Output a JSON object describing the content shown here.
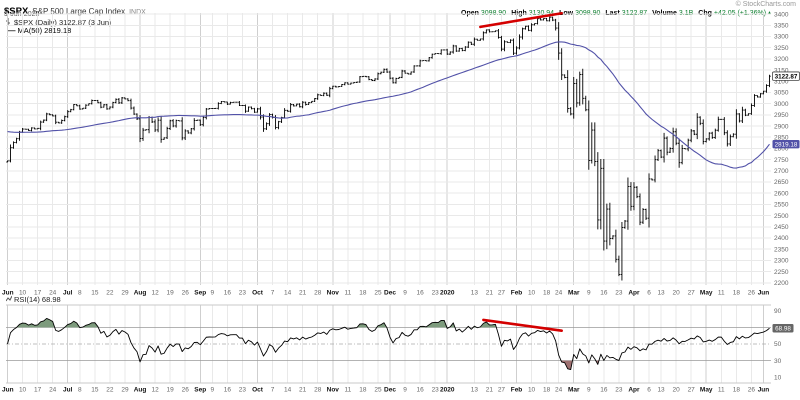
{
  "meta": {
    "copyright": "© StockCharts.com"
  },
  "header": {
    "symbol": "$SPX",
    "name": "S&P 500 Large Cap Index",
    "exchange": "INDX",
    "date": "3-Jun-2020",
    "quote": {
      "items": [
        {
          "label": "Open",
          "value": "3098.90"
        },
        {
          "label": "High",
          "value": "3130.94"
        },
        {
          "label": "Low",
          "value": "3098.90"
        },
        {
          "label": "Last",
          "value": "3122.87"
        },
        {
          "label": "Volume",
          "value": "3.1B"
        },
        {
          "label": "Chg",
          "value": "+42.05 (+1.36%)"
        }
      ],
      "arrow": "▲"
    }
  },
  "legend": {
    "price": "$SPX (Daily) 3122.87 (3 Jun)",
    "ma": "MA(50) 2819.18"
  },
  "rsi_legend": "RSI(14) 68.98",
  "colors": {
    "bar": "#000000",
    "ma_line": "#5252a8",
    "trendline": "#d40000",
    "up_green": "#0a7d2c",
    "rsi_line": "#000000",
    "rsi_overbought_fill": "#7d9b7d",
    "rsi_oversold_fill": "#9e7070",
    "grid_light": "#e9e9e9",
    "grid_month": "#cfcfcf",
    "axis_text": "#666666"
  },
  "chart_data": [
    {
      "type": "bar",
      "title": "$SPX Daily OHLC with 50-day moving average",
      "ylabel": "Price",
      "ylim": [
        2200,
        3400
      ],
      "y_axis": {
        "min": 2200,
        "max": 3400,
        "step": 50
      },
      "last_close": 3122.87,
      "last_close_label": "3122.87",
      "ma_window": 50,
      "ma_last": 2819.18,
      "ma_last_label": "2819.18",
      "ma_left_edge_value": 2878,
      "trendline": {
        "start_index": 157,
        "start_value": 3343,
        "end_index": 184,
        "end_value": 3404
      },
      "x_ticks": [
        {
          "label": "Jun",
          "index": 0,
          "bold": true
        },
        {
          "label": "10",
          "index": 5
        },
        {
          "label": "17",
          "index": 10
        },
        {
          "label": "24",
          "index": 15
        },
        {
          "label": "Jul",
          "index": 20,
          "bold": true
        },
        {
          "label": "8",
          "index": 24
        },
        {
          "label": "15",
          "index": 29
        },
        {
          "label": "22",
          "index": 34
        },
        {
          "label": "29",
          "index": 39
        },
        {
          "label": "Aug",
          "index": 44,
          "bold": true
        },
        {
          "label": "12",
          "index": 49
        },
        {
          "label": "19",
          "index": 54
        },
        {
          "label": "26",
          "index": 59
        },
        {
          "label": "Sep",
          "index": 64,
          "bold": true
        },
        {
          "label": "9",
          "index": 68
        },
        {
          "label": "16",
          "index": 73
        },
        {
          "label": "23",
          "index": 78
        },
        {
          "label": "Oct",
          "index": 83,
          "bold": true
        },
        {
          "label": "7",
          "index": 88
        },
        {
          "label": "14",
          "index": 93
        },
        {
          "label": "21",
          "index": 98
        },
        {
          "label": "28",
          "index": 103
        },
        {
          "label": "Nov",
          "index": 108,
          "bold": true
        },
        {
          "label": "11",
          "index": 113
        },
        {
          "label": "18",
          "index": 118
        },
        {
          "label": "25",
          "index": 123
        },
        {
          "label": "Dec",
          "index": 127,
          "bold": true
        },
        {
          "label": "9",
          "index": 132
        },
        {
          "label": "16",
          "index": 137
        },
        {
          "label": "23",
          "index": 142
        },
        {
          "label": "2020",
          "index": 146,
          "bold": true
        },
        {
          "label": "13",
          "index": 155
        },
        {
          "label": "21",
          "index": 160
        },
        {
          "label": "27",
          "index": 164
        },
        {
          "label": "Feb",
          "index": 169,
          "bold": true
        },
        {
          "label": "10",
          "index": 174
        },
        {
          "label": "18",
          "index": 179
        },
        {
          "label": "24",
          "index": 183
        },
        {
          "label": "Mar",
          "index": 188,
          "bold": true
        },
        {
          "label": "9",
          "index": 193
        },
        {
          "label": "16",
          "index": 198
        },
        {
          "label": "23",
          "index": 203
        },
        {
          "label": "Apr",
          "index": 208,
          "bold": true
        },
        {
          "label": "6",
          "index": 213
        },
        {
          "label": "13",
          "index": 217
        },
        {
          "label": "20",
          "index": 222
        },
        {
          "label": "27",
          "index": 227
        },
        {
          "label": "May",
          "index": 232,
          "bold": true
        },
        {
          "label": "11",
          "index": 237
        },
        {
          "label": "18",
          "index": 242
        },
        {
          "label": "26",
          "index": 247
        },
        {
          "label": "Jun",
          "index": 251,
          "bold": true
        }
      ],
      "closes": [
        2744.45,
        2803.27,
        2826.15,
        2843.49,
        2873.34,
        2886.73,
        2885.72,
        2879.84,
        2891.64,
        2886.98,
        2889.67,
        2917.75,
        2926.46,
        2954.18,
        2950.46,
        2945.35,
        2917.38,
        2913.78,
        2924.92,
        2941.76,
        2964.33,
        2973.01,
        2995.82,
        2990.41,
        2975.95,
        2979.63,
        2993.07,
        2999.91,
        3013.77,
        3014.3,
        3004.04,
        2984.42,
        2995.11,
        2976.61,
        2985.03,
        3005.47,
        3019.56,
        3003.67,
        3025.86,
        3020.97,
        3013.18,
        2980.38,
        2953.56,
        2932.05,
        2844.74,
        2881.77,
        2883.98,
        2938.09,
        2918.65,
        2882.7,
        2926.32,
        2840.6,
        2847.6,
        2888.68,
        2923.65,
        2900.51,
        2924.43,
        2922.95,
        2847.11,
        2878.38,
        2869.16,
        2887.94,
        2924.58,
        2926.46,
        2906.27,
        2937.78,
        2976.0,
        2978.71,
        2978.43,
        2979.39,
        3000.93,
        3009.57,
        3007.39,
        2997.96,
        3005.7,
        3006.73,
        3006.79,
        2992.07,
        2991.78,
        2966.6,
        2984.87,
        2977.62,
        2961.79,
        2976.74,
        2940.25,
        2887.61,
        2910.63,
        2952.01,
        2938.79,
        2893.06,
        2919.4,
        2938.13,
        2970.27,
        2966.15,
        2995.68,
        2989.69,
        2997.95,
        2986.2,
        3006.72,
        2995.99,
        3004.52,
        3010.29,
        3022.55,
        3039.42,
        3036.89,
        3046.77,
        3037.56,
        3066.91,
        3078.27,
        3074.62,
        3076.78,
        3085.18,
        3093.08,
        3087.01,
        3091.84,
        3094.04,
        3096.63,
        3120.46,
        3122.03,
        3120.18,
        3108.46,
        3103.54,
        3110.29,
        3133.64,
        3140.52,
        3153.63,
        3140.98,
        3113.87,
        3093.2,
        3112.76,
        3117.43,
        3145.91,
        3135.96,
        3132.52,
        3141.63,
        3168.57,
        3168.8,
        3191.45,
        3192.52,
        3191.14,
        3205.37,
        3221.22,
        3224.01,
        3223.38,
        3239.91,
        3240.02,
        3221.29,
        3230.78,
        3257.85,
        3234.85,
        3246.28,
        3237.18,
        3253.05,
        3274.7,
        3265.35,
        3288.13,
        3283.15,
        3289.29,
        3316.81,
        3329.62,
        3320.79,
        3321.75,
        3325.54,
        3295.47,
        3243.63,
        3276.24,
        3273.4,
        3283.66,
        3225.52,
        3248.92,
        3297.59,
        3334.69,
        3345.78,
        3327.71,
        3352.09,
        3357.75,
        3379.45,
        3373.94,
        3380.16,
        3370.29,
        3386.15,
        3373.23,
        3337.75,
        3225.89,
        3128.21,
        3116.39,
        2978.76,
        2954.22,
        3090.23,
        3003.37,
        3130.12,
        3023.94,
        2972.37,
        2746.56,
        2882.23,
        2741.38,
        2480.64,
        2711.02,
        2386.13,
        2529.19,
        2398.1,
        2409.39,
        2304.92,
        2237.4,
        2447.33,
        2475.56,
        2630.07,
        2541.47,
        2626.65,
        2584.59,
        2470.5,
        2526.9,
        2488.65,
        2663.68,
        2659.41,
        2749.98,
        2789.82,
        2761.63,
        2846.06,
        2783.36,
        2799.55,
        2874.56,
        2823.16,
        2736.56,
        2799.31,
        2797.8,
        2836.74,
        2878.48,
        2863.39,
        2939.51,
        2912.43,
        2830.71,
        2842.74,
        2868.44,
        2848.42,
        2881.19,
        2929.8,
        2930.32,
        2870.12,
        2820.0,
        2852.5,
        2863.7,
        2953.91,
        2922.94,
        2971.61,
        2948.51,
        2955.45,
        2991.77,
        3036.13,
        3029.73,
        3044.31,
        3055.73,
        3080.82,
        3122.87
      ]
    },
    {
      "type": "line",
      "title": "RSI(14)",
      "period": 14,
      "ylim": [
        0,
        100
      ],
      "y_ticks": [
        90,
        70,
        50,
        30,
        10
      ],
      "overbought": 70,
      "mid": 50,
      "oversold": 30,
      "last_value": 68.98,
      "last_value_label": "68.98",
      "trendline": {
        "start_index": 158,
        "start_value": 79,
        "end_index": 184,
        "end_value": 66
      }
    }
  ]
}
